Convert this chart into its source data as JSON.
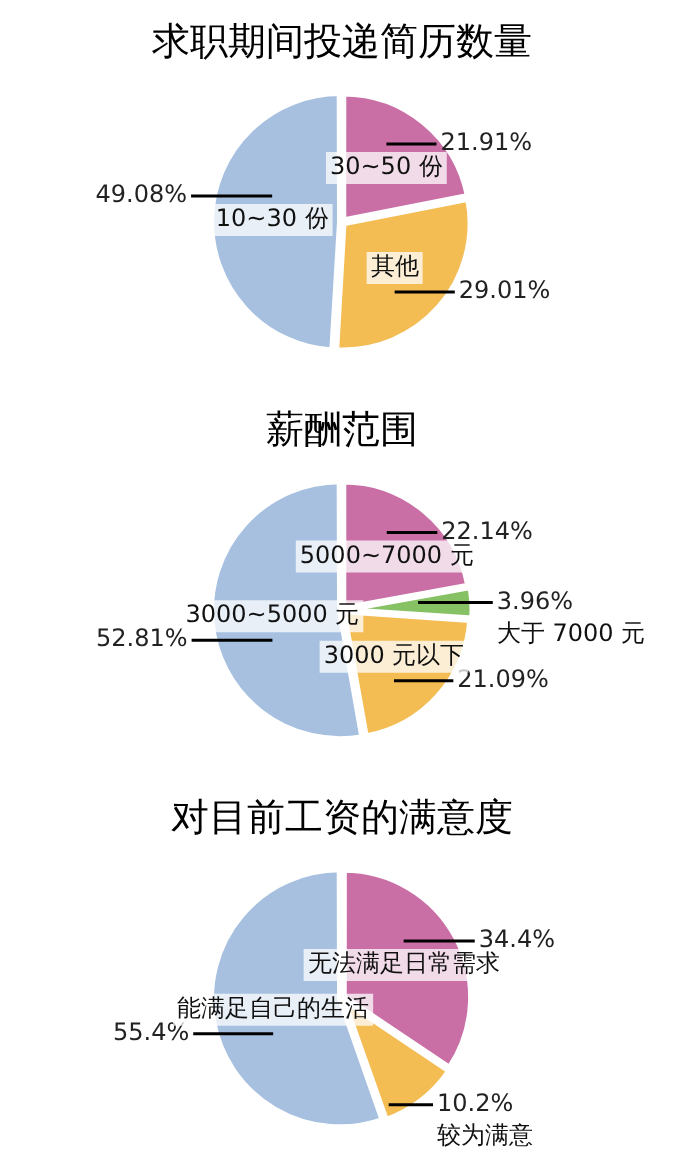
{
  "chart_data": [
    {
      "type": "pie",
      "title": "求职期间投递简历数量",
      "categories": [
        "30~50 份",
        "其他",
        "10~30 份"
      ],
      "values": [
        21.91,
        29.01,
        49.08
      ],
      "colors": [
        "#c96fa5",
        "#f3bd54",
        "#a7c0e0"
      ],
      "value_labels": [
        "21.91%",
        "29.01%",
        "49.08%"
      ]
    },
    {
      "type": "pie",
      "title": "薪酬范围",
      "categories": [
        "5000~7000 元",
        "大于 7000 元",
        "3000 元以下",
        "3000~5000 元"
      ],
      "values": [
        22.14,
        3.96,
        21.09,
        52.81
      ],
      "colors": [
        "#c96fa5",
        "#86c163",
        "#f3bd54",
        "#a7c0e0"
      ],
      "value_labels": [
        "22.14%",
        "3.96%",
        "21.09%",
        "52.81%"
      ]
    },
    {
      "type": "pie",
      "title": "对目前工资的满意度",
      "categories": [
        "无法满足日常需求",
        "较为满意",
        "能满足自己的生活"
      ],
      "values": [
        34.4,
        10.2,
        55.4
      ],
      "colors": [
        "#c96fa5",
        "#f3bd54",
        "#a7c0e0"
      ],
      "value_labels": [
        "34.4%",
        "10.2%",
        "55.4%"
      ]
    }
  ]
}
